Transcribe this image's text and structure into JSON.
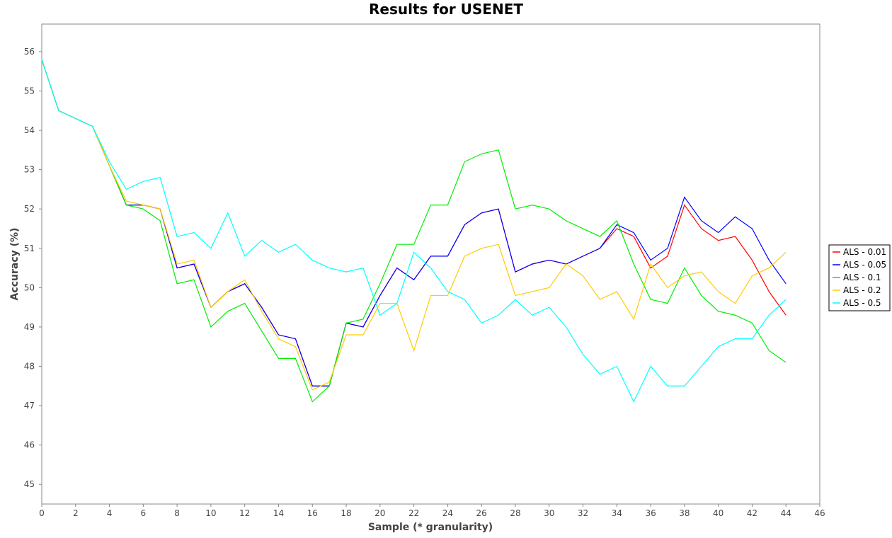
{
  "chart_data": {
    "type": "line",
    "title": "Results for USENET",
    "xlabel": "Sample (* granularity)",
    "ylabel": "Accuracy (%)",
    "xlim": [
      0,
      46
    ],
    "ylim": [
      44.5,
      56.7
    ],
    "x_ticks": [
      "0",
      "2",
      "4",
      "6",
      "8",
      "10",
      "12",
      "14",
      "16",
      "18",
      "20",
      "22",
      "24",
      "26",
      "28",
      "30",
      "32",
      "34",
      "36",
      "38",
      "40",
      "42",
      "44",
      "46"
    ],
    "y_ticks": [
      "45",
      "46",
      "47",
      "48",
      "49",
      "50",
      "51",
      "52",
      "53",
      "54",
      "55",
      "56"
    ],
    "grid": false,
    "legend_position": "right",
    "x": [
      0,
      1,
      2,
      3,
      4,
      5,
      6,
      7,
      8,
      9,
      10,
      11,
      12,
      13,
      14,
      15,
      16,
      17,
      18,
      19,
      20,
      21,
      22,
      23,
      24,
      25,
      26,
      27,
      28,
      29,
      30,
      31,
      32,
      33,
      34,
      35,
      36,
      37,
      38,
      39,
      40,
      41,
      42,
      43,
      44
    ],
    "series": [
      {
        "name": "ALS - 0.01",
        "color": "#ff0000",
        "values": [
          55.8,
          54.5,
          54.3,
          54.1,
          53.1,
          52.1,
          52.1,
          52.0,
          50.5,
          50.6,
          49.5,
          49.9,
          50.1,
          49.5,
          48.8,
          48.7,
          47.5,
          47.5,
          49.1,
          49.0,
          49.8,
          50.5,
          50.2,
          50.8,
          50.8,
          51.6,
          51.9,
          52.0,
          50.4,
          50.6,
          50.7,
          50.6,
          50.8,
          51.0,
          51.5,
          51.3,
          50.5,
          50.8,
          52.1,
          51.5,
          51.2,
          51.3,
          50.7,
          49.9,
          49.3
        ]
      },
      {
        "name": "ALS - 0.05",
        "color": "#0000ff",
        "values": [
          55.8,
          54.5,
          54.3,
          54.1,
          53.1,
          52.1,
          52.1,
          52.0,
          50.5,
          50.6,
          49.5,
          49.9,
          50.1,
          49.5,
          48.8,
          48.7,
          47.5,
          47.5,
          49.1,
          49.0,
          49.8,
          50.5,
          50.2,
          50.8,
          50.8,
          51.6,
          51.9,
          52.0,
          50.4,
          50.6,
          50.7,
          50.6,
          50.8,
          51.0,
          51.6,
          51.4,
          50.7,
          51.0,
          52.3,
          51.7,
          51.4,
          51.8,
          51.5,
          50.7,
          50.1
        ]
      },
      {
        "name": "ALS - 0.1",
        "color": "#00ee00",
        "values": [
          55.8,
          54.5,
          54.3,
          54.1,
          53.1,
          52.1,
          52.0,
          51.7,
          50.1,
          50.2,
          49.0,
          49.4,
          49.6,
          48.9,
          48.2,
          48.2,
          47.1,
          47.5,
          49.1,
          49.2,
          50.1,
          51.1,
          51.1,
          52.1,
          52.1,
          53.2,
          53.4,
          53.5,
          52.0,
          52.1,
          52.0,
          51.7,
          51.5,
          51.3,
          51.7,
          50.6,
          49.7,
          49.6,
          50.5,
          49.8,
          49.4,
          49.3,
          49.1,
          48.4,
          48.1
        ]
      },
      {
        "name": "ALS - 0.2",
        "color": "#ffcc00",
        "values": [
          55.8,
          54.5,
          54.3,
          54.1,
          53.1,
          52.2,
          52.1,
          52.0,
          50.6,
          50.7,
          49.5,
          49.9,
          50.2,
          49.4,
          48.7,
          48.5,
          47.4,
          47.6,
          48.8,
          48.8,
          49.6,
          49.6,
          48.4,
          49.8,
          49.8,
          50.8,
          51.0,
          51.1,
          49.8,
          49.9,
          50.0,
          50.6,
          50.3,
          49.7,
          49.9,
          49.2,
          50.6,
          50.0,
          50.3,
          50.4,
          49.9,
          49.6,
          50.3,
          50.5,
          50.9
        ]
      },
      {
        "name": "ALS - 0.5",
        "color": "#00ffff",
        "values": [
          55.8,
          54.5,
          54.3,
          54.1,
          53.2,
          52.5,
          52.7,
          52.8,
          51.3,
          51.4,
          51.0,
          51.9,
          50.8,
          51.2,
          50.9,
          51.1,
          50.7,
          50.5,
          50.4,
          50.5,
          49.3,
          49.6,
          50.9,
          50.5,
          49.9,
          49.7,
          49.1,
          49.3,
          49.7,
          49.3,
          49.5,
          49.0,
          48.3,
          47.8,
          48.0,
          47.1,
          48.0,
          47.5,
          47.5,
          48.0,
          48.5,
          48.7,
          48.7,
          49.3,
          49.7
        ]
      }
    ]
  }
}
